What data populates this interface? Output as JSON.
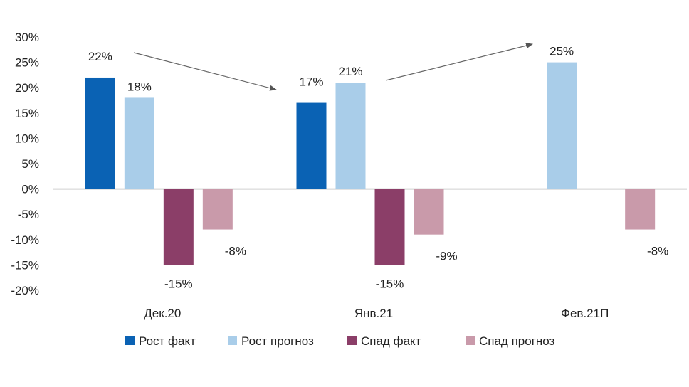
{
  "chart_data": {
    "type": "bar",
    "categories": [
      "Дек.20",
      "Янв.21",
      "Фев.21П"
    ],
    "series": [
      {
        "name": "Рост факт",
        "values": [
          22,
          17,
          null
        ],
        "labels": [
          "22%",
          "17%",
          ""
        ],
        "color": "#0a62b4"
      },
      {
        "name": "Рост прогноз",
        "values": [
          18,
          21,
          25
        ],
        "labels": [
          "18%",
          "21%",
          "25%"
        ],
        "color": "#a9cde9"
      },
      {
        "name": "Спад факт",
        "values": [
          -15,
          -15,
          null
        ],
        "labels": [
          "-15%",
          "-15%",
          ""
        ],
        "color": "#8b3e68"
      },
      {
        "name": "Спад прогноз",
        "values": [
          -8,
          -9,
          -8
        ],
        "labels": [
          "-8%",
          "-9%",
          "-8%"
        ],
        "color": "#c99aaa"
      }
    ],
    "ylim": [
      -20,
      30
    ],
    "yticks": [
      30,
      25,
      20,
      15,
      10,
      5,
      0,
      -5,
      -10,
      -15,
      -20
    ],
    "ytick_labels": [
      "30%",
      "25%",
      "20%",
      "15%",
      "10%",
      "5%",
      "0%",
      "-5%",
      "-10%",
      "-15%",
      "-20%"
    ],
    "legend_position": "bottom",
    "annotations": [
      "arrow from Дек.20 to Янв.21",
      "arrow from Янв.21 to Фев.21П"
    ],
    "grid": false
  }
}
